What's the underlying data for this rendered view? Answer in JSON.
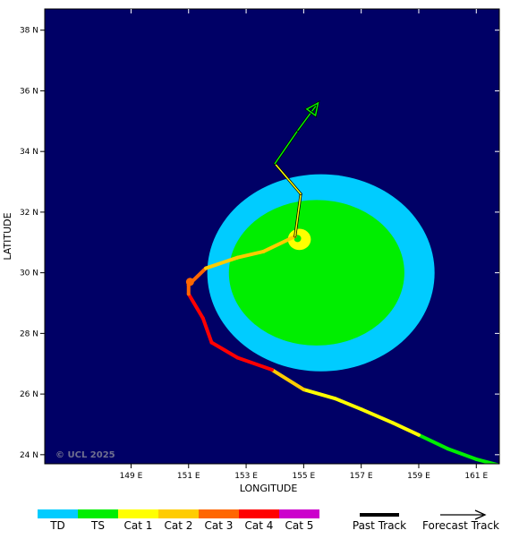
{
  "credit": "© UCL 2025",
  "axes": {
    "xlabel": "LONGITUDE",
    "ylabel": "LATITUDE",
    "lon_range": [
      146.0,
      161.8
    ],
    "lat_range": [
      23.7,
      38.7
    ],
    "lon_ticks": [
      {
        "value": 149,
        "label": "149 E"
      },
      {
        "value": 151,
        "label": "151 E"
      },
      {
        "value": 153,
        "label": "153 E"
      },
      {
        "value": 155,
        "label": "155 E"
      },
      {
        "value": 157,
        "label": "157 E"
      },
      {
        "value": 159,
        "label": "159 E"
      },
      {
        "value": 161,
        "label": "161 E"
      }
    ],
    "lat_ticks": [
      {
        "value": 24,
        "label": "24 N"
      },
      {
        "value": 26,
        "label": "26 N"
      },
      {
        "value": 28,
        "label": "28 N"
      },
      {
        "value": 30,
        "label": "30 N"
      },
      {
        "value": 32,
        "label": "32 N"
      },
      {
        "value": 34,
        "label": "34 N"
      },
      {
        "value": 36,
        "label": "36 N"
      },
      {
        "value": 38,
        "label": "38 N"
      }
    ]
  },
  "colors": {
    "ocean": "#000066",
    "TD": "#00ccff",
    "TS": "#00ee00",
    "Cat 1": "#ffff00",
    "Cat 2": "#ffcc00",
    "Cat 3": "#ff6600",
    "Cat 4": "#ff0000",
    "Cat 5": "#cc00cc"
  },
  "wind_fields": [
    {
      "category": "TD",
      "center": [
        155.6,
        30.0
      ],
      "radius_lon": 3.95,
      "radius_lat": 3.25
    },
    {
      "category": "TS",
      "center": [
        155.45,
        30.0
      ],
      "radius_lon": 3.05,
      "radius_lat": 2.4
    },
    {
      "category": "Cat 1",
      "center": [
        154.85,
        31.1
      ],
      "radius_lon": 0.4,
      "radius_lat": 0.35
    }
  ],
  "past_track": [
    {
      "lon": 162.0,
      "lat": 23.6,
      "category": "TS"
    },
    {
      "lon": 161.0,
      "lat": 23.85,
      "category": "TS"
    },
    {
      "lon": 160.0,
      "lat": 24.2,
      "category": "TS"
    },
    {
      "lon": 159.0,
      "lat": 24.65,
      "category": "TS"
    },
    {
      "lon": 158.1,
      "lat": 25.05,
      "category": "Cat 1"
    },
    {
      "lon": 157.0,
      "lat": 25.5,
      "category": "Cat 1"
    },
    {
      "lon": 156.1,
      "lat": 25.85,
      "category": "Cat 1"
    },
    {
      "lon": 155.0,
      "lat": 26.15,
      "category": "Cat 1"
    },
    {
      "lon": 153.9,
      "lat": 26.8,
      "category": "Cat 2"
    },
    {
      "lon": 152.7,
      "lat": 27.2,
      "category": "Cat 4"
    },
    {
      "lon": 151.8,
      "lat": 27.7,
      "category": "Cat 4"
    },
    {
      "lon": 151.5,
      "lat": 28.5,
      "category": "Cat 4"
    },
    {
      "lon": 151.0,
      "lat": 29.3,
      "category": "Cat 4"
    },
    {
      "lon": 151.0,
      "lat": 29.6,
      "category": "Cat 3"
    },
    {
      "lon": 151.6,
      "lat": 30.15,
      "category": "Cat 3"
    },
    {
      "lon": 152.7,
      "lat": 30.5,
      "category": "Cat 2"
    },
    {
      "lon": 153.6,
      "lat": 30.7,
      "category": "Cat 2"
    },
    {
      "lon": 154.7,
      "lat": 31.2,
      "category": "Cat 2"
    }
  ],
  "position_marker": {
    "lon": 151.05,
    "lat": 29.7,
    "category": "Cat 3"
  },
  "forecast_track": [
    {
      "lon": 154.7,
      "lat": 31.2,
      "category": "Cat 1"
    },
    {
      "lon": 154.9,
      "lat": 32.6,
      "category": "Cat 1"
    },
    {
      "lon": 154.0,
      "lat": 33.6,
      "category": "Cat 1"
    },
    {
      "lon": 154.8,
      "lat": 34.7,
      "category": "TS"
    },
    {
      "lon": 155.5,
      "lat": 35.6,
      "category": "TS"
    }
  ],
  "legend": {
    "categories": [
      "TD",
      "TS",
      "Cat 1",
      "Cat 2",
      "Cat 3",
      "Cat 4",
      "Cat 5"
    ],
    "past_track_label": "Past Track",
    "forecast_track_label": "Forecast Track"
  }
}
